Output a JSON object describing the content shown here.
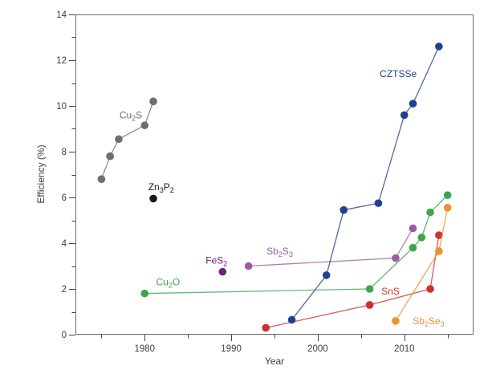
{
  "page": {
    "background": "#ffffff"
  },
  "chart_data": {
    "type": "line",
    "title": "",
    "xlabel": "Year",
    "ylabel": "Efficiency (%)",
    "xlim": [
      1972,
      2018
    ],
    "ylim": [
      0,
      14
    ],
    "x_major_ticks": [
      1980,
      1990,
      2000,
      2010
    ],
    "x_minor_ticks": [
      1975,
      1985,
      1995,
      2005,
      2015
    ],
    "y_major_ticks": [
      0,
      2,
      4,
      6,
      8,
      10,
      12,
      14
    ],
    "y_minor_ticks": [
      1,
      3,
      5,
      7,
      9,
      11,
      13
    ],
    "grid": false,
    "legend_style": "inline-labels",
    "frame_color": "#6a6a6a",
    "tick_color": "#424242",
    "tick_label_color": "#3d3d3d",
    "axis_title_color": "#3d3d3d",
    "series": [
      {
        "name": "Cu2S",
        "label": "Cu_2S",
        "color": "#6e6e6e",
        "label_pos": [
          1978.4,
          9.6
        ],
        "points": [
          [
            1975,
            6.8
          ],
          [
            1976,
            7.8
          ],
          [
            1977,
            8.55
          ],
          [
            1980,
            9.15
          ],
          [
            1981,
            10.2
          ]
        ]
      },
      {
        "name": "Zn3P2",
        "label": "Zn_3P_2",
        "color": "#1a1a1a",
        "label_pos": [
          1981.9,
          6.45
        ],
        "points": [
          [
            1981,
            5.95
          ]
        ]
      },
      {
        "name": "FeS2",
        "label": "FeS_2",
        "color": "#6f2077",
        "label_pos": [
          1988.3,
          3.25
        ],
        "points": [
          [
            1989,
            2.75
          ]
        ]
      },
      {
        "name": "Sb2S3",
        "label": "Sb_2S_3",
        "color": "#a05aa5",
        "label_pos": [
          1995.6,
          3.65
        ],
        "points": [
          [
            1992,
            3.0
          ],
          [
            2009,
            3.35
          ],
          [
            2011,
            4.65
          ]
        ]
      },
      {
        "name": "Cu2O",
        "label": "Cu_2O",
        "color": "#3fa54d",
        "label_pos": [
          1982.7,
          2.3
        ],
        "points": [
          [
            1980,
            1.8
          ],
          [
            2006,
            2.0
          ],
          [
            2011,
            3.8
          ],
          [
            2012,
            4.25
          ],
          [
            2013,
            5.35
          ],
          [
            2015,
            6.1
          ]
        ]
      },
      {
        "name": "SnS",
        "label": "SnS",
        "color": "#cf3028",
        "label_pos": [
          2008.4,
          1.9
        ],
        "points": [
          [
            1994,
            0.3
          ],
          [
            2006,
            1.3
          ],
          [
            2013,
            2.0
          ],
          [
            2014,
            4.35
          ]
        ]
      },
      {
        "name": "CZTSSe",
        "label": "CZTSSe",
        "color": "#20418e",
        "label_pos": [
          2009.3,
          11.4
        ],
        "points": [
          [
            1997,
            0.65
          ],
          [
            2001,
            2.6
          ],
          [
            2003,
            5.45
          ],
          [
            2007,
            5.75
          ],
          [
            2010,
            9.6
          ],
          [
            2011,
            10.1
          ],
          [
            2014,
            12.6
          ]
        ]
      },
      {
        "name": "Sb2Se3",
        "label": "Sb_2Se_3",
        "color": "#ee9135",
        "label_pos": [
          2012.8,
          0.6
        ],
        "points": [
          [
            2009,
            0.6
          ],
          [
            2014,
            3.65
          ],
          [
            2015,
            5.55
          ]
        ]
      }
    ]
  }
}
